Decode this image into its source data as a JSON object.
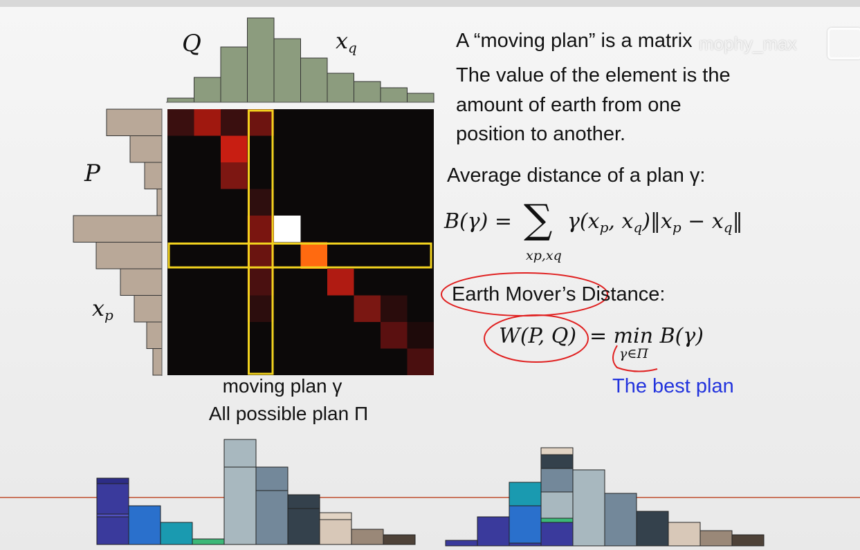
{
  "labels": {
    "q": "Q",
    "xq": "x",
    "xq_sub": "q",
    "p": "P",
    "xp": "x",
    "xp_sub": "p"
  },
  "captions": {
    "moving_plan": "moving plan γ",
    "all_plans": "All possible plan Π"
  },
  "text": {
    "line1": "A “moving plan” is a matrix",
    "line2": "The value of the element is the",
    "line3": "amount of earth from one",
    "line4": "position to another.",
    "avg": "Average distance of a plan γ:",
    "formula_lhs": "B(γ) =",
    "formula_sum": "∑",
    "formula_body": "γ(x",
    "formula_body2": ", x",
    "formula_body3": ")‖x",
    "formula_body4": " − x",
    "formula_body5": "‖",
    "formula_under": "xp,xq",
    "emd": "Earth Mover’s Distance:",
    "w_lhs": "W(P, Q)",
    "w_eq": "= min B(γ)",
    "w_under": "γ∈Π",
    "best": "The best plan"
  },
  "watermark": "mophy_max",
  "colors": {
    "q_hist": "#8c9c7e",
    "p_hist": "#b9a898",
    "highlight": "#f2d21e",
    "annotation": "#e02020",
    "best_plan": "#2233dd",
    "matrix_bg": "#0c0909"
  },
  "histograms": {
    "q_heights": [
      6,
      36,
      80,
      122,
      92,
      64,
      42,
      30,
      21,
      13
    ],
    "p_widths": [
      80,
      46,
      25,
      7,
      128,
      95,
      60,
      40,
      22,
      13
    ]
  },
  "plan_matrix": {
    "cells": [
      {
        "row": 0,
        "col": 0,
        "v": "#3a0f0f"
      },
      {
        "row": 0,
        "col": 1,
        "v": "#a0180f"
      },
      {
        "row": 0,
        "col": 2,
        "v": "#3a0f0f"
      },
      {
        "row": 0,
        "col": 3,
        "v": "#6d1410"
      },
      {
        "row": 1,
        "col": 2,
        "v": "#c81e12"
      },
      {
        "row": 2,
        "col": 2,
        "v": "#7d1712"
      },
      {
        "row": 3,
        "col": 3,
        "v": "#2e0e0e"
      },
      {
        "row": 4,
        "col": 3,
        "v": "#7a1510"
      },
      {
        "row": 4,
        "col": 4,
        "v": "#ffffff"
      },
      {
        "row": 5,
        "col": 3,
        "v": "#6a1410"
      },
      {
        "row": 5,
        "col": 5,
        "v": "#ff6a10"
      },
      {
        "row": 6,
        "col": 3,
        "v": "#4a1010"
      },
      {
        "row": 6,
        "col": 6,
        "v": "#b01b12"
      },
      {
        "row": 7,
        "col": 3,
        "v": "#2c0d0d"
      },
      {
        "row": 7,
        "col": 7,
        "v": "#7a1712"
      },
      {
        "row": 7,
        "col": 8,
        "v": "#2a0c0c"
      },
      {
        "row": 8,
        "col": 8,
        "v": "#5a1010"
      },
      {
        "row": 8,
        "col": 9,
        "v": "#1e0a0a"
      },
      {
        "row": 9,
        "col": 9,
        "v": "#4a0f0f"
      }
    ],
    "highlight_col": 3,
    "highlight_row": 5
  },
  "bottom_left_bars": [
    {
      "segments": [
        {
          "h": 40,
          "c": "#3a3a9c"
        },
        {
          "h": 4,
          "c": "#5050c0"
        },
        {
          "h": 44,
          "c": "#3a3a9c"
        },
        {
          "h": 8,
          "c": "#2d2d86"
        }
      ]
    },
    {
      "segments": [
        {
          "h": 56,
          "c": "#2a70cc"
        }
      ]
    },
    {
      "segments": [
        {
          "h": 32,
          "c": "#1a9ab0"
        }
      ]
    },
    {
      "segments": [
        {
          "h": 8,
          "c": "#3cb878"
        }
      ]
    },
    {
      "segments": [
        {
          "h": 112,
          "c": "#a8b8bf"
        },
        {
          "h": 40,
          "c": "#a8b8bf"
        }
      ]
    },
    {
      "segments": [
        {
          "h": 78,
          "c": "#73889a"
        },
        {
          "h": 34,
          "c": "#73889a"
        }
      ]
    },
    {
      "segments": [
        {
          "h": 52,
          "c": "#34414c"
        },
        {
          "h": 20,
          "c": "#34414c"
        }
      ]
    },
    {
      "segments": [
        {
          "h": 36,
          "c": "#d8c8b8"
        },
        {
          "h": 10,
          "c": "#e2d4c4"
        }
      ]
    },
    {
      "segments": [
        {
          "h": 22,
          "c": "#9a8878"
        }
      ]
    },
    {
      "segments": [
        {
          "h": 14,
          "c": "#4e4238"
        }
      ]
    }
  ],
  "bottom_right_bars": [
    {
      "segments": [
        {
          "h": 8,
          "c": "#3a3a9c"
        }
      ]
    },
    {
      "segments": [
        {
          "h": 42,
          "c": "#3a3a9c"
        }
      ]
    },
    {
      "segments": [
        {
          "h": 4,
          "c": "#3a3a9c"
        },
        {
          "h": 54,
          "c": "#2a70cc"
        },
        {
          "h": 34,
          "c": "#1a9ab0"
        }
      ]
    },
    {
      "segments": [
        {
          "h": 34,
          "c": "#3a3a9c"
        },
        {
          "h": 6,
          "c": "#3cb878"
        },
        {
          "h": 38,
          "c": "#a8b8bf"
        },
        {
          "h": 34,
          "c": "#73889a"
        },
        {
          "h": 20,
          "c": "#34414c"
        },
        {
          "h": 10,
          "c": "#e2d4c4"
        }
      ]
    },
    {
      "segments": [
        {
          "h": 110,
          "c": "#a8b8bf"
        }
      ]
    },
    {
      "segments": [
        {
          "h": 76,
          "c": "#73889a"
        }
      ]
    },
    {
      "segments": [
        {
          "h": 50,
          "c": "#34414c"
        }
      ]
    },
    {
      "segments": [
        {
          "h": 34,
          "c": "#d8c8b8"
        }
      ]
    },
    {
      "segments": [
        {
          "h": 22,
          "c": "#9a8878"
        }
      ]
    },
    {
      "segments": [
        {
          "h": 16,
          "c": "#4e4238"
        }
      ]
    }
  ]
}
